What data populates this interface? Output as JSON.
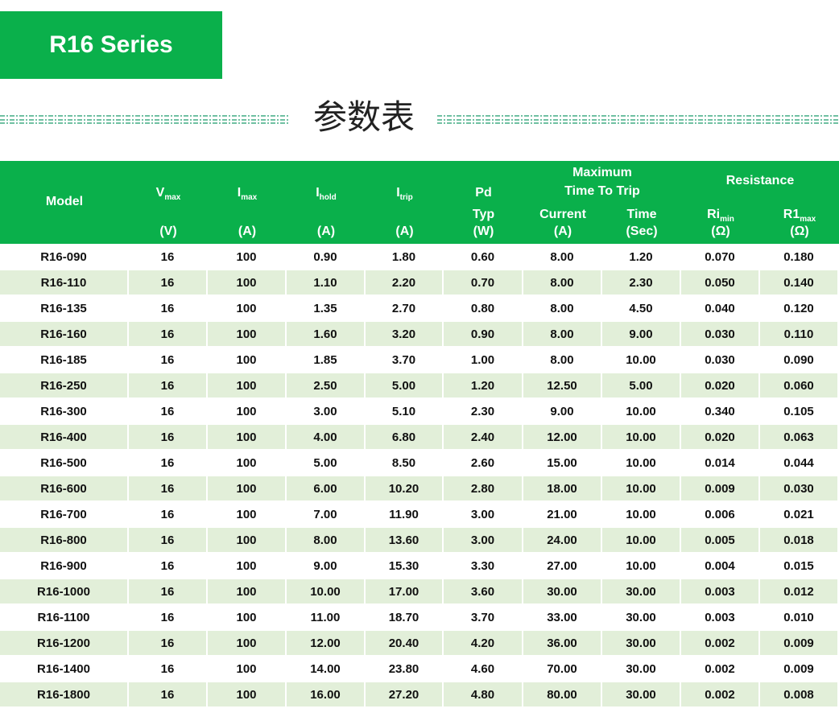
{
  "header": {
    "title": "R16 Series",
    "subtitle": "参数表"
  },
  "table": {
    "columns": [
      {
        "label": "Model"
      },
      {
        "label": "V",
        "sub": "max",
        "unit": "(V)"
      },
      {
        "label": "I",
        "sub": "max",
        "unit": "(A)"
      },
      {
        "label": "I",
        "sub": "hold",
        "unit": "(A)"
      },
      {
        "label": "I",
        "sub": "trip",
        "unit": "(A)"
      },
      {
        "label": "Pd",
        "note": "Typ",
        "unit": "(W)"
      },
      {
        "label": "Current",
        "unit": "(A)"
      },
      {
        "label": "Time",
        "unit": "(Sec)"
      },
      {
        "label": "Ri",
        "sub": "min",
        "unit": "(Ω)"
      },
      {
        "label": "R1",
        "sub": "max",
        "unit": "(Ω)"
      }
    ],
    "trip_group": [
      "Maximum",
      "Time To Trip"
    ],
    "resistance_group": "Resistance",
    "rows": [
      [
        "R16-090",
        "16",
        "100",
        "0.90",
        "1.80",
        "0.60",
        "8.00",
        "1.20",
        "0.070",
        "0.180"
      ],
      [
        "R16-110",
        "16",
        "100",
        "1.10",
        "2.20",
        "0.70",
        "8.00",
        "2.30",
        "0.050",
        "0.140"
      ],
      [
        "R16-135",
        "16",
        "100",
        "1.35",
        "2.70",
        "0.80",
        "8.00",
        "4.50",
        "0.040",
        "0.120"
      ],
      [
        "R16-160",
        "16",
        "100",
        "1.60",
        "3.20",
        "0.90",
        "8.00",
        "9.00",
        "0.030",
        "0.110"
      ],
      [
        "R16-185",
        "16",
        "100",
        "1.85",
        "3.70",
        "1.00",
        "8.00",
        "10.00",
        "0.030",
        "0.090"
      ],
      [
        "R16-250",
        "16",
        "100",
        "2.50",
        "5.00",
        "1.20",
        "12.50",
        "5.00",
        "0.020",
        "0.060"
      ],
      [
        "R16-300",
        "16",
        "100",
        "3.00",
        "5.10",
        "2.30",
        "9.00",
        "10.00",
        "0.340",
        "0.105"
      ],
      [
        "R16-400",
        "16",
        "100",
        "4.00",
        "6.80",
        "2.40",
        "12.00",
        "10.00",
        "0.020",
        "0.063"
      ],
      [
        "R16-500",
        "16",
        "100",
        "5.00",
        "8.50",
        "2.60",
        "15.00",
        "10.00",
        "0.014",
        "0.044"
      ],
      [
        "R16-600",
        "16",
        "100",
        "6.00",
        "10.20",
        "2.80",
        "18.00",
        "10.00",
        "0.009",
        "0.030"
      ],
      [
        "R16-700",
        "16",
        "100",
        "7.00",
        "11.90",
        "3.00",
        "21.00",
        "10.00",
        "0.006",
        "0.021"
      ],
      [
        "R16-800",
        "16",
        "100",
        "8.00",
        "13.60",
        "3.00",
        "24.00",
        "10.00",
        "0.005",
        "0.018"
      ],
      [
        "R16-900",
        "16",
        "100",
        "9.00",
        "15.30",
        "3.30",
        "27.00",
        "10.00",
        "0.004",
        "0.015"
      ],
      [
        "R16-1000",
        "16",
        "100",
        "10.00",
        "17.00",
        "3.60",
        "30.00",
        "30.00",
        "0.003",
        "0.012"
      ],
      [
        "R16-1100",
        "16",
        "100",
        "11.00",
        "18.70",
        "3.70",
        "33.00",
        "30.00",
        "0.003",
        "0.010"
      ],
      [
        "R16-1200",
        "16",
        "100",
        "12.00",
        "20.40",
        "4.20",
        "36.00",
        "30.00",
        "0.002",
        "0.009"
      ],
      [
        "R16-1400",
        "16",
        "100",
        "14.00",
        "23.80",
        "4.60",
        "70.00",
        "30.00",
        "0.002",
        "0.009"
      ],
      [
        "R16-1800",
        "16",
        "100",
        "16.00",
        "27.20",
        "4.80",
        "80.00",
        "30.00",
        "0.002",
        "0.008"
      ]
    ]
  }
}
